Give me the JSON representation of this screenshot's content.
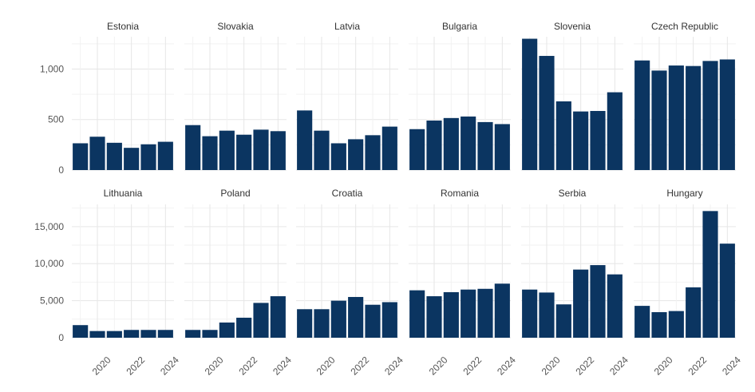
{
  "chart_data": {
    "type": "bar",
    "layout": "small-multiples, 2 rows x 6 columns, free y-scale per row",
    "x": [
      2019,
      2020,
      2021,
      2022,
      2023,
      2024
    ],
    "x_tick_labels": [
      "2020",
      "2022",
      "2024"
    ],
    "bar_color": "#0b3561",
    "grid": true,
    "rows": [
      {
        "y_ticks": [
          "0",
          "500",
          "1,000"
        ],
        "y_tick_values": [
          0,
          500,
          1000
        ],
        "ylim": [
          0,
          1320
        ],
        "panels": [
          {
            "name": "Estonia",
            "values": [
              265,
              330,
              270,
              220,
              255,
              280
            ]
          },
          {
            "name": "Slovakia",
            "values": [
              445,
              335,
              390,
              350,
              400,
              385
            ]
          },
          {
            "name": "Latvia",
            "values": [
              590,
              390,
              265,
              305,
              345,
              430
            ]
          },
          {
            "name": "Bulgaria",
            "values": [
              405,
              490,
              515,
              530,
              475,
              455
            ]
          },
          {
            "name": "Slovenia",
            "values": [
              1300,
              1130,
              680,
              580,
              585,
              770
            ]
          },
          {
            "name": "Czech Republic",
            "values": [
              1085,
              985,
              1035,
              1030,
              1080,
              1095
            ]
          }
        ]
      },
      {
        "y_ticks": [
          "0",
          "5,000",
          "10,000",
          "15,000"
        ],
        "y_tick_values": [
          0,
          5000,
          10000,
          15000
        ],
        "ylim": [
          0,
          18000
        ],
        "panels": [
          {
            "name": "Lithuania",
            "values": [
              1700,
              900,
              900,
              1050,
              1050,
              1050
            ]
          },
          {
            "name": "Poland",
            "values": [
              1050,
              1050,
              2050,
              2700,
              4700,
              5600
            ]
          },
          {
            "name": "Croatia",
            "values": [
              3850,
              3850,
              5000,
              5500,
              4450,
              4800
            ]
          },
          {
            "name": "Romania",
            "values": [
              6400,
              5600,
              6150,
              6500,
              6600,
              7300
            ]
          },
          {
            "name": "Serbia",
            "values": [
              6500,
              6100,
              4500,
              9200,
              9800,
              8550
            ]
          },
          {
            "name": "Hungary",
            "values": [
              4300,
              3450,
              3600,
              6800,
              17100,
              12700
            ]
          }
        ]
      }
    ]
  }
}
